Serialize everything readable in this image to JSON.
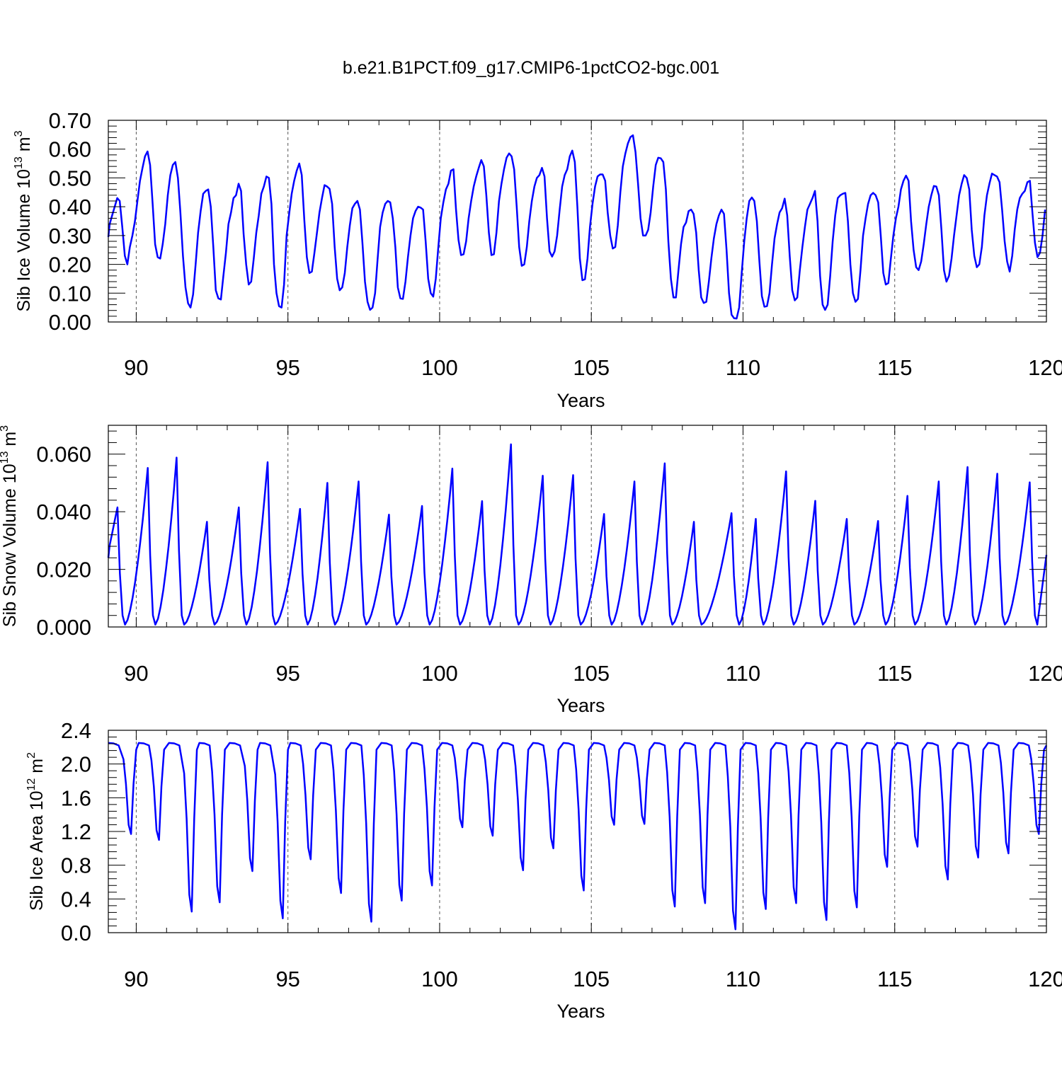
{
  "title": "b.e21.B1PCT.f09_g17.CMIP6-1pctCO2-bgc.001",
  "chart_data": [
    {
      "type": "line",
      "title": "",
      "xlabel": "Years",
      "ylabel_main": "Sib Ice Volume 10",
      "ylabel_exp": "13",
      "ylabel_unit": " m",
      "ylabel_unit_exp": "3",
      "xlim": [
        89.08,
        120
      ],
      "ylim": [
        0,
        0.7
      ],
      "xticks": [
        90,
        95,
        100,
        105,
        110,
        115,
        120
      ],
      "yticks": [
        0,
        0.1,
        0.2,
        0.3,
        0.4,
        0.5,
        0.6,
        0.7
      ],
      "ytick_labels": [
        "0.00",
        "0.10",
        "0.20",
        "0.30",
        "0.40",
        "0.50",
        "0.60",
        "0.70"
      ],
      "grid": "dashed vertical lines at major x ticks",
      "series": [
        {
          "color": "#0000ff",
          "x_start": 89.04,
          "x_step": 0.08333,
          "values": [
            0.295,
            0.34,
            0.37,
            0.4,
            0.43,
            0.42,
            0.33,
            0.23,
            0.2,
            0.26,
            0.3,
            0.35,
            0.42,
            0.49,
            0.535,
            0.575,
            0.592,
            0.545,
            0.41,
            0.27,
            0.225,
            0.22,
            0.27,
            0.34,
            0.44,
            0.51,
            0.545,
            0.555,
            0.5,
            0.38,
            0.23,
            0.12,
            0.065,
            0.05,
            0.095,
            0.2,
            0.31,
            0.385,
            0.445,
            0.455,
            0.46,
            0.4,
            0.26,
            0.11,
            0.082,
            0.078,
            0.16,
            0.24,
            0.34,
            0.38,
            0.43,
            0.44,
            0.48,
            0.455,
            0.305,
            0.2,
            0.13,
            0.14,
            0.22,
            0.31,
            0.37,
            0.445,
            0.47,
            0.505,
            0.5,
            0.41,
            0.2,
            0.1,
            0.055,
            0.05,
            0.13,
            0.3,
            0.375,
            0.445,
            0.49,
            0.525,
            0.55,
            0.51,
            0.355,
            0.225,
            0.17,
            0.175,
            0.24,
            0.31,
            0.38,
            0.43,
            0.475,
            0.47,
            0.462,
            0.41,
            0.26,
            0.15,
            0.11,
            0.12,
            0.17,
            0.26,
            0.335,
            0.395,
            0.41,
            0.42,
            0.39,
            0.275,
            0.14,
            0.07,
            0.042,
            0.05,
            0.1,
            0.22,
            0.33,
            0.38,
            0.41,
            0.42,
            0.415,
            0.36,
            0.26,
            0.12,
            0.082,
            0.08,
            0.14,
            0.225,
            0.3,
            0.36,
            0.385,
            0.4,
            0.397,
            0.39,
            0.28,
            0.15,
            0.1,
            0.088,
            0.15,
            0.26,
            0.36,
            0.415,
            0.46,
            0.48,
            0.525,
            0.53,
            0.39,
            0.285,
            0.232,
            0.235,
            0.28,
            0.36,
            0.42,
            0.47,
            0.505,
            0.535,
            0.562,
            0.54,
            0.44,
            0.31,
            0.232,
            0.235,
            0.31,
            0.42,
            0.48,
            0.53,
            0.57,
            0.585,
            0.575,
            0.53,
            0.4,
            0.26,
            0.195,
            0.2,
            0.26,
            0.35,
            0.42,
            0.47,
            0.5,
            0.51,
            0.535,
            0.505,
            0.36,
            0.245,
            0.227,
            0.245,
            0.3,
            0.39,
            0.47,
            0.51,
            0.53,
            0.575,
            0.595,
            0.555,
            0.4,
            0.22,
            0.145,
            0.148,
            0.22,
            0.33,
            0.41,
            0.47,
            0.505,
            0.512,
            0.512,
            0.49,
            0.38,
            0.3,
            0.255,
            0.26,
            0.335,
            0.45,
            0.54,
            0.585,
            0.62,
            0.642,
            0.648,
            0.59,
            0.48,
            0.36,
            0.3,
            0.3,
            0.32,
            0.38,
            0.47,
            0.545,
            0.57,
            0.568,
            0.555,
            0.46,
            0.28,
            0.15,
            0.085,
            0.085,
            0.18,
            0.27,
            0.33,
            0.345,
            0.385,
            0.39,
            0.375,
            0.31,
            0.18,
            0.085,
            0.066,
            0.07,
            0.14,
            0.22,
            0.29,
            0.34,
            0.37,
            0.39,
            0.375,
            0.25,
            0.1,
            0.025,
            0.013,
            0.012,
            0.05,
            0.17,
            0.28,
            0.36,
            0.42,
            0.432,
            0.42,
            0.35,
            0.21,
            0.09,
            0.053,
            0.055,
            0.1,
            0.2,
            0.29,
            0.34,
            0.38,
            0.395,
            0.428,
            0.37,
            0.23,
            0.11,
            0.075,
            0.085,
            0.18,
            0.26,
            0.33,
            0.39,
            0.41,
            0.43,
            0.455,
            0.35,
            0.16,
            0.06,
            0.042,
            0.06,
            0.16,
            0.28,
            0.37,
            0.43,
            0.44,
            0.445,
            0.448,
            0.35,
            0.2,
            0.1,
            0.07,
            0.08,
            0.18,
            0.3,
            0.36,
            0.41,
            0.44,
            0.448,
            0.44,
            0.415,
            0.3,
            0.17,
            0.13,
            0.135,
            0.22,
            0.3,
            0.36,
            0.4,
            0.46,
            0.49,
            0.508,
            0.49,
            0.35,
            0.25,
            0.19,
            0.18,
            0.21,
            0.27,
            0.34,
            0.4,
            0.44,
            0.472,
            0.47,
            0.44,
            0.32,
            0.18,
            0.14,
            0.16,
            0.22,
            0.3,
            0.37,
            0.44,
            0.48,
            0.51,
            0.5,
            0.46,
            0.32,
            0.23,
            0.19,
            0.2,
            0.26,
            0.37,
            0.44,
            0.48,
            0.515,
            0.51,
            0.505,
            0.485,
            0.39,
            0.28,
            0.21,
            0.175,
            0.23,
            0.32,
            0.39,
            0.43,
            0.445,
            0.455,
            0.485,
            0.49,
            0.38,
            0.275,
            0.225,
            0.24,
            0.3,
            0.39
          ]
        }
      ]
    },
    {
      "type": "line",
      "title": "",
      "xlabel": "Years",
      "ylabel_main": "Sib Snow Volume 10",
      "ylabel_exp": "13",
      "ylabel_unit": " m",
      "ylabel_unit_exp": "3",
      "xlim": [
        89.08,
        120
      ],
      "ylim": [
        0,
        0.07
      ],
      "xticks": [
        90,
        95,
        100,
        105,
        110,
        115,
        120
      ],
      "yticks": [
        0,
        0.02,
        0.04,
        0.06
      ],
      "ytick_labels": [
        "0.000",
        "0.020",
        "0.040",
        "0.060"
      ],
      "grid": "dashed vertical lines at major x ticks",
      "series": [
        {
          "color": "#0000ff",
          "peaks_note": "annual snow volume cycle, peaks in spring, near zero in late summer",
          "peaks": [
            0.0415,
            0.0552,
            0.0588,
            0.0365,
            0.0415,
            0.0572,
            0.041,
            0.05,
            0.0505,
            0.039,
            0.042,
            0.055,
            0.0437,
            0.0634,
            0.0525,
            0.0527,
            0.0392,
            0.0505,
            0.0568,
            0.0365,
            0.0395,
            0.0375,
            0.054,
            0.0438,
            0.0375,
            0.0368,
            0.0455,
            0.0505,
            0.0555,
            0.0532,
            0.0502
          ],
          "peak_x": [
            89.38,
            90.38,
            91.33,
            92.33,
            93.38,
            94.33,
            95.4,
            96.3,
            97.33,
            98.33,
            99.42,
            100.42,
            101.4,
            102.35,
            103.4,
            104.4,
            105.42,
            106.42,
            107.42,
            108.38,
            109.62,
            110.42,
            111.42,
            112.38,
            113.42,
            114.45,
            115.42,
            116.45,
            117.4,
            118.38,
            119.45
          ],
          "start_value": 0.024,
          "end_value": 0.025
        }
      ]
    },
    {
      "type": "line",
      "title": "",
      "xlabel": "Years",
      "ylabel_main": "Sib Ice Area 10",
      "ylabel_exp": "12",
      "ylabel_unit": " m",
      "ylabel_unit_exp": "2",
      "xlim": [
        89.08,
        120
      ],
      "ylim": [
        0,
        2.4
      ],
      "xticks": [
        90,
        95,
        100,
        105,
        110,
        115,
        120
      ],
      "yticks": [
        0,
        0.4,
        0.8,
        1.2,
        1.6,
        2.0,
        2.4
      ],
      "ytick_labels": [
        "0.0",
        "0.4",
        "0.8",
        "1.2",
        "1.6",
        "2.0",
        "2.4"
      ],
      "grid": "dashed vertical lines at major x ticks",
      "series": [
        {
          "color": "#0000ff",
          "winter_max": 2.25,
          "minima": [
            1.17,
            1.1,
            0.25,
            0.36,
            0.73,
            0.17,
            0.87,
            0.47,
            0.13,
            0.38,
            0.56,
            1.25,
            1.15,
            0.74,
            1.0,
            0.5,
            1.28,
            1.29,
            0.31,
            0.35,
            0.04,
            0.28,
            0.35,
            0.15,
            0.3,
            0.78,
            1.02,
            0.63,
            0.89,
            0.94,
            1.17
          ],
          "min_x": [
            89.83,
            90.75,
            91.83,
            92.75,
            93.83,
            94.83,
            95.75,
            96.75,
            97.75,
            98.75,
            99.75,
            100.75,
            101.75,
            102.75,
            103.75,
            104.75,
            105.75,
            106.75,
            107.75,
            108.75,
            109.75,
            110.75,
            111.75,
            112.75,
            113.75,
            114.75,
            115.75,
            116.75,
            117.75,
            118.75,
            119.75
          ],
          "start_value": 2.25,
          "end_value": 2.22
        }
      ]
    }
  ]
}
